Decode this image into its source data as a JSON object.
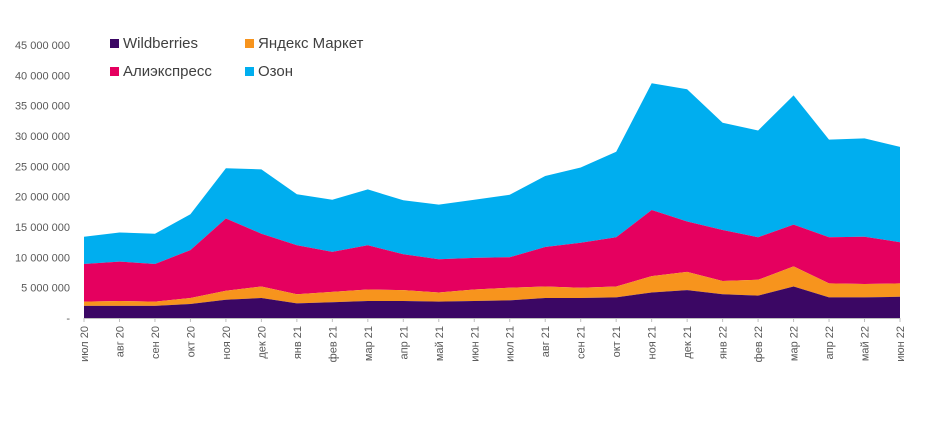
{
  "chart_data": {
    "type": "area",
    "stacked": true,
    "categories": [
      "июл 20",
      "авг 20",
      "сен 20",
      "окт 20",
      "ноя 20",
      "дек 20",
      "янв 21",
      "фев 21",
      "мар 21",
      "апр 21",
      "май 21",
      "июн 21",
      "июл 21",
      "авг 21",
      "сен 21",
      "окт 21",
      "ноя 21",
      "дек 21",
      "янв 22",
      "фев 22",
      "мар 22",
      "апр 22",
      "май 22",
      "июн 22"
    ],
    "series": [
      {
        "name": "Wildberries",
        "color": "#3b0764",
        "values": [
          2000000,
          2000000,
          2000000,
          2300000,
          3000000,
          3300000,
          2400000,
          2600000,
          2800000,
          2800000,
          2700000,
          2800000,
          2900000,
          3300000,
          3300000,
          3400000,
          4200000,
          4600000,
          3900000,
          3700000,
          5200000,
          3400000,
          3400000,
          3500000
        ]
      },
      {
        "name": "Яндекс Маркет",
        "color": "#f7941d",
        "values": [
          700000,
          800000,
          700000,
          1000000,
          1500000,
          1900000,
          1500000,
          1700000,
          1900000,
          1800000,
          1500000,
          1900000,
          2100000,
          1900000,
          1700000,
          1800000,
          2700000,
          3000000,
          2200000,
          2600000,
          3300000,
          2300000,
          2200000,
          2200000
        ]
      },
      {
        "name": "Алиэкспресс",
        "color": "#e5005f",
        "values": [
          6200000,
          6500000,
          6200000,
          7900000,
          11900000,
          8700000,
          8100000,
          6600000,
          7300000,
          5900000,
          5500000,
          5200000,
          5000000,
          6500000,
          7400000,
          8100000,
          10900000,
          8300000,
          8400000,
          7000000,
          6900000,
          7600000,
          7800000,
          6800000
        ]
      },
      {
        "name": "Озон",
        "color": "#00aeef",
        "values": [
          4500000,
          4800000,
          5000000,
          5900000,
          8300000,
          10600000,
          8400000,
          8600000,
          9200000,
          8900000,
          9000000,
          9600000,
          10300000,
          11700000,
          12400000,
          14100000,
          20900000,
          21800000,
          17700000,
          17600000,
          21300000,
          16100000,
          16200000,
          15700000
        ]
      }
    ],
    "legend_order": [
      "Wildberries",
      "Яндекс Маркет",
      "Алиэкспресс",
      "Озон"
    ],
    "ylim": [
      0,
      45000000
    ],
    "yticks": [
      {
        "value": 0,
        "label": "-"
      },
      {
        "value": 5000000,
        "label": "5 000 000"
      },
      {
        "value": 10000000,
        "label": "10 000 000"
      },
      {
        "value": 15000000,
        "label": "15 000 000"
      },
      {
        "value": 20000000,
        "label": "20 000 000"
      },
      {
        "value": 25000000,
        "label": "25 000 000"
      },
      {
        "value": 30000000,
        "label": "30 000 000"
      },
      {
        "value": 35000000,
        "label": "35 000 000"
      },
      {
        "value": 40000000,
        "label": "40 000 000"
      },
      {
        "value": 45000000,
        "label": "45 000 000"
      }
    ],
    "grid": false,
    "legend_position": "top-left",
    "title": "",
    "xlabel": "",
    "ylabel": ""
  }
}
